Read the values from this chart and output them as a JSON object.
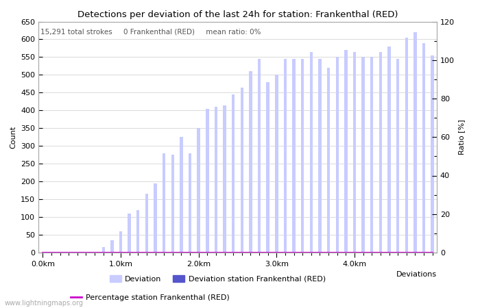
{
  "title": "Detections per deviation of the last 24h for station: Frankenthal (RED)",
  "subtitle": "15,291 total strokes     0 Frankenthal (RED)     mean ratio: 0%",
  "xlabel": "Deviations",
  "ylabel_left": "Count",
  "ylabel_right": "Ratio [%]",
  "ylim_left": [
    0,
    650
  ],
  "ylim_right": [
    0,
    120
  ],
  "yticks_left": [
    0,
    50,
    100,
    150,
    200,
    250,
    300,
    350,
    400,
    450,
    500,
    550,
    600,
    650
  ],
  "yticks_right_labeled": [
    0,
    20,
    40,
    60,
    80,
    100,
    120
  ],
  "yticks_right_minor": [
    10,
    30,
    50,
    70,
    90,
    110
  ],
  "bar_color_light": "#c8ccff",
  "bar_color_dark": "#5555cc",
  "line_color": "#cc00cc",
  "background_color": "#ffffff",
  "grid_color": "#cccccc",
  "watermark": "www.lightningmaps.org",
  "xtick_labels": [
    "0.0km",
    "1.0km",
    "2.0km",
    "3.0km",
    "4.0km"
  ],
  "xtick_positions": [
    0,
    9,
    18,
    27,
    36
  ],
  "num_bars": 46,
  "bar_values": [
    0,
    0,
    0,
    0,
    0,
    0,
    0,
    15,
    35,
    60,
    110,
    120,
    165,
    195,
    280,
    275,
    325,
    280,
    350,
    405,
    410,
    415,
    445,
    465,
    510,
    545,
    480,
    500,
    545,
    545,
    545,
    565,
    545,
    520,
    550,
    570,
    565,
    550,
    550,
    565,
    580,
    545,
    605,
    620,
    590,
    555
  ],
  "station_bar_values": [
    0,
    0,
    0,
    0,
    0,
    0,
    0,
    0,
    0,
    0,
    0,
    0,
    0,
    0,
    0,
    0,
    0,
    0,
    0,
    0,
    0,
    0,
    0,
    0,
    0,
    0,
    0,
    0,
    0,
    0,
    0,
    0,
    0,
    0,
    0,
    0,
    0,
    0,
    0,
    0,
    0,
    0,
    0,
    0,
    0,
    0
  ],
  "percentage_values": [
    0,
    0,
    0,
    0,
    0,
    0,
    0,
    0,
    0,
    0,
    0,
    0,
    0,
    0,
    0,
    0,
    0,
    0,
    0,
    0,
    0,
    0,
    0,
    0,
    0,
    0,
    0,
    0,
    0,
    0,
    0,
    0,
    0,
    0,
    0,
    0,
    0,
    0,
    0,
    0,
    0,
    0,
    0,
    0,
    0,
    0
  ],
  "title_fontsize": 9.5,
  "subtitle_fontsize": 7.5,
  "axis_fontsize": 8,
  "tick_fontsize": 8,
  "legend_fontsize": 8,
  "watermark_fontsize": 7
}
